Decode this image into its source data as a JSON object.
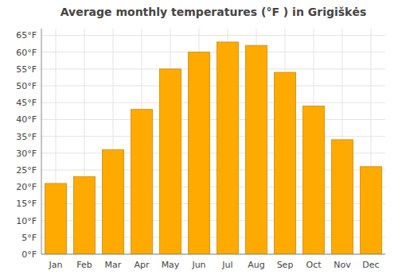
{
  "chart_data": {
    "type": "bar",
    "title": "Average monthly temperatures (°F ) in Grigiškės",
    "categories": [
      "Jan",
      "Feb",
      "Mar",
      "Apr",
      "May",
      "Jun",
      "Jul",
      "Aug",
      "Sep",
      "Oct",
      "Nov",
      "Dec"
    ],
    "values": [
      21,
      23,
      31,
      43,
      55,
      60,
      63,
      62,
      54,
      44,
      34,
      26
    ],
    "color": "#FFAA00",
    "ylim": [
      0,
      67
    ],
    "yticks": [
      {
        "value": 0,
        "label": "0°F"
      },
      {
        "value": 5,
        "label": "5°F"
      },
      {
        "value": 10,
        "label": "10°F"
      },
      {
        "value": 15,
        "label": "15°F"
      },
      {
        "value": 20,
        "label": "20°F"
      },
      {
        "value": 25,
        "label": "25°F"
      },
      {
        "value": 30,
        "label": "30°F"
      },
      {
        "value": 35,
        "label": "35°F"
      },
      {
        "value": 40,
        "label": "40°F"
      },
      {
        "value": 45,
        "label": "45°F"
      },
      {
        "value": 50,
        "label": "50°F"
      },
      {
        "value": 55,
        "label": "55°F"
      },
      {
        "value": 60,
        "label": "60°F"
      },
      {
        "value": 65,
        "label": "65°F"
      }
    ],
    "grid": true
  }
}
